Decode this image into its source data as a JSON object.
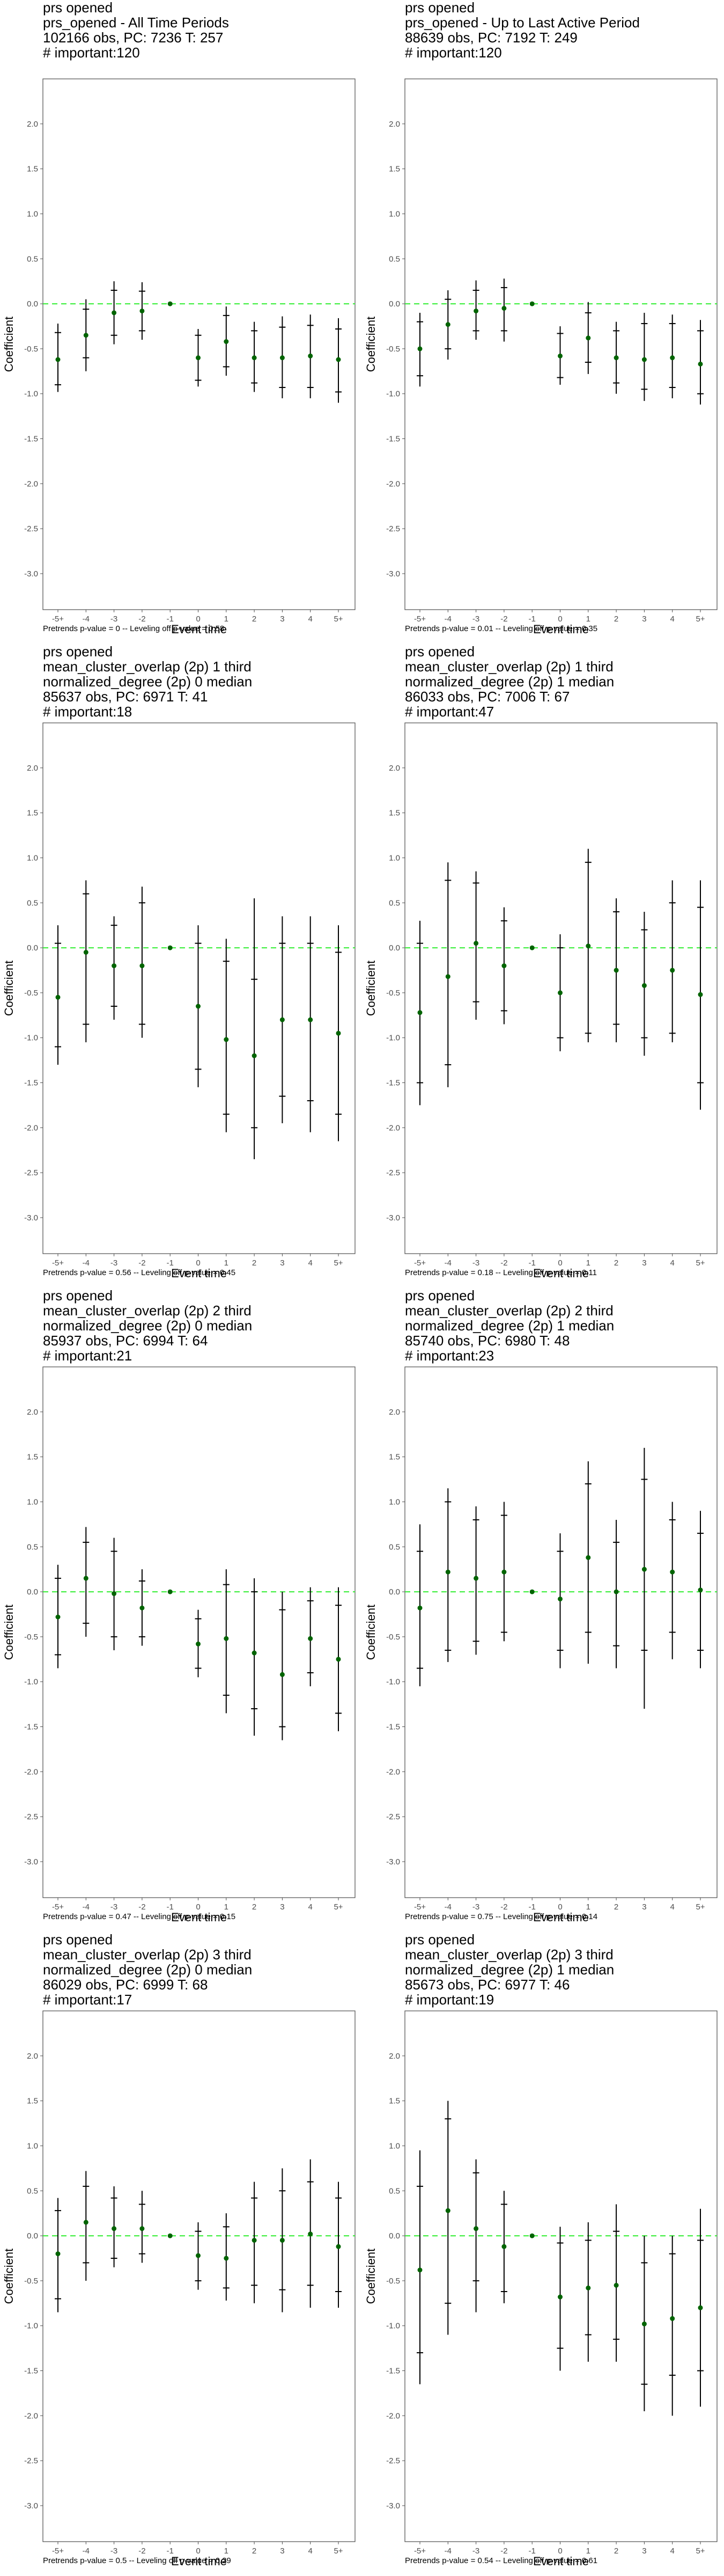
{
  "shared": {
    "xlabel": "Event time",
    "ylabel": "Coefficient",
    "categories": [
      "-5+",
      "-4",
      "-3",
      "-2",
      "-1",
      "0",
      "1",
      "2",
      "3",
      "4",
      "5+"
    ],
    "yticks": [
      2.0,
      1.5,
      1.0,
      0.5,
      0.0,
      -0.5,
      -1.0,
      -1.5,
      -2.0,
      -2.5,
      -3.0
    ],
    "ytick_labels": [
      "2.0",
      "1.5",
      "1.0",
      "0.5",
      "0.0",
      "-0.5",
      "-1.0",
      "-1.5",
      "-2.0",
      "-2.5",
      "-3.0"
    ],
    "ylim": [
      -3.4,
      2.5
    ],
    "colors": {
      "point": "#006400",
      "reference_line": "#33ee33",
      "error_bar": "#000000",
      "frame": "#4d4d4d"
    }
  },
  "chart_data": [
    {
      "type": "scatter",
      "title_lines": [
        "prs opened",
        "prs_opened - All Time Periods",
        "102166 obs, PC: 7236 T: 257",
        "# important:120"
      ],
      "footer": "Pretrends p-value = 0 -- Leveling off p-value = 0.58",
      "estimates": [
        -0.62,
        -0.35,
        -0.1,
        -0.08,
        0.0,
        -0.6,
        -0.42,
        -0.6,
        -0.6,
        -0.58,
        -0.62
      ],
      "ci_inner": [
        [
          -0.9,
          -0.32
        ],
        [
          -0.6,
          -0.06
        ],
        [
          -0.35,
          0.15
        ],
        [
          -0.3,
          0.14
        ],
        null,
        [
          -0.85,
          -0.35
        ],
        [
          -0.7,
          -0.13
        ],
        [
          -0.88,
          -0.3
        ],
        [
          -0.93,
          -0.26
        ],
        [
          -0.93,
          -0.24
        ],
        [
          -0.98,
          -0.28
        ]
      ],
      "ci_outer": [
        [
          -0.98,
          -0.22
        ],
        [
          -0.75,
          0.05
        ],
        [
          -0.45,
          0.25
        ],
        [
          -0.4,
          0.24
        ],
        null,
        [
          -0.92,
          -0.28
        ],
        [
          -0.8,
          -0.03
        ],
        [
          -0.98,
          -0.2
        ],
        [
          -1.05,
          -0.14
        ],
        [
          -1.05,
          -0.12
        ],
        [
          -1.1,
          -0.16
        ]
      ]
    },
    {
      "type": "scatter",
      "title_lines": [
        "prs opened",
        "prs_opened - Up to Last Active Period",
        "88639 obs, PC: 7192 T: 249",
        "# important:120"
      ],
      "footer": "Pretrends p-value = 0.01 -- Leveling off p-value = 0.35",
      "estimates": [
        -0.5,
        -0.23,
        -0.08,
        -0.05,
        0.0,
        -0.58,
        -0.38,
        -0.6,
        -0.62,
        -0.6,
        -0.67
      ],
      "ci_inner": [
        [
          -0.8,
          -0.2
        ],
        [
          -0.5,
          0.05
        ],
        [
          -0.3,
          0.15
        ],
        [
          -0.3,
          0.18
        ],
        null,
        [
          -0.82,
          -0.33
        ],
        [
          -0.65,
          -0.1
        ],
        [
          -0.88,
          -0.3
        ],
        [
          -0.95,
          -0.22
        ],
        [
          -0.93,
          -0.22
        ],
        [
          -1.0,
          -0.3
        ]
      ],
      "ci_outer": [
        [
          -0.92,
          -0.1
        ],
        [
          -0.62,
          0.15
        ],
        [
          -0.4,
          0.26
        ],
        [
          -0.42,
          0.28
        ],
        null,
        [
          -0.9,
          -0.25
        ],
        [
          -0.78,
          0.02
        ],
        [
          -1.0,
          -0.2
        ],
        [
          -1.08,
          -0.1
        ],
        [
          -1.05,
          -0.12
        ],
        [
          -1.12,
          -0.18
        ]
      ]
    },
    {
      "type": "scatter",
      "title_lines": [
        "prs opened",
        "mean_cluster_overlap (2p) 1 third",
        "normalized_degree (2p) 0 median",
        "85637 obs, PC: 6971 T: 41",
        "# important:18"
      ],
      "footer": "Pretrends p-value = 0.56 -- Leveling off p-value = 0.45",
      "estimates": [
        -0.55,
        -0.05,
        -0.2,
        -0.2,
        0.0,
        -0.65,
        -1.02,
        -1.2,
        -0.8,
        -0.8,
        -0.95
      ],
      "ci_inner": [
        [
          -1.1,
          0.05
        ],
        [
          -0.85,
          0.6
        ],
        [
          -0.65,
          0.25
        ],
        [
          -0.85,
          0.5
        ],
        null,
        [
          -1.35,
          0.05
        ],
        [
          -1.85,
          -0.15
        ],
        [
          -2.0,
          -0.35
        ],
        [
          -1.65,
          0.05
        ],
        [
          -1.7,
          0.05
        ],
        [
          -1.85,
          -0.05
        ]
      ],
      "ci_outer": [
        [
          -1.3,
          0.25
        ],
        [
          -1.05,
          0.75
        ],
        [
          -0.8,
          0.35
        ],
        [
          -1.0,
          0.68
        ],
        null,
        [
          -1.55,
          0.25
        ],
        [
          -2.05,
          0.1
        ],
        [
          -2.35,
          0.55
        ],
        [
          -1.95,
          0.35
        ],
        [
          -2.05,
          0.35
        ],
        [
          -2.15,
          0.25
        ]
      ]
    },
    {
      "type": "scatter",
      "title_lines": [
        "prs opened",
        "mean_cluster_overlap (2p) 1 third",
        "normalized_degree (2p) 1 median",
        "86033 obs, PC: 7006 T: 67",
        "# important:47"
      ],
      "footer": "Pretrends p-value = 0.18 -- Leveling off p-value = 0.11",
      "estimates": [
        -0.72,
        -0.32,
        0.05,
        -0.2,
        0.0,
        -0.5,
        0.02,
        -0.25,
        -0.42,
        -0.25,
        -0.52
      ],
      "ci_inner": [
        [
          -1.5,
          0.05
        ],
        [
          -1.3,
          0.75
        ],
        [
          -0.6,
          0.72
        ],
        [
          -0.7,
          0.3
        ],
        null,
        [
          -1.0,
          0.0
        ],
        [
          -0.95,
          0.95
        ],
        [
          -0.85,
          0.4
        ],
        [
          -1.0,
          0.2
        ],
        [
          -0.95,
          0.5
        ],
        [
          -1.5,
          0.45
        ]
      ],
      "ci_outer": [
        [
          -1.75,
          0.3
        ],
        [
          -1.55,
          0.95
        ],
        [
          -0.8,
          0.85
        ],
        [
          -0.85,
          0.45
        ],
        null,
        [
          -1.15,
          0.15
        ],
        [
          -1.05,
          1.1
        ],
        [
          -1.05,
          0.55
        ],
        [
          -1.2,
          0.4
        ],
        [
          -1.05,
          0.75
        ],
        [
          -1.8,
          0.75
        ]
      ]
    },
    {
      "type": "scatter",
      "title_lines": [
        "prs opened",
        "mean_cluster_overlap (2p) 2 third",
        "normalized_degree (2p) 0 median",
        "85937 obs, PC: 6994 T: 64",
        "# important:21"
      ],
      "footer": "Pretrends p-value = 0.47 -- Leveling off p-value = 0.15",
      "estimates": [
        -0.28,
        0.15,
        -0.02,
        -0.18,
        0.0,
        -0.58,
        -0.52,
        -0.68,
        -0.92,
        -0.52,
        -0.75
      ],
      "ci_inner": [
        [
          -0.7,
          0.15
        ],
        [
          -0.35,
          0.55
        ],
        [
          -0.5,
          0.45
        ],
        [
          -0.5,
          0.12
        ],
        null,
        [
          -0.85,
          -0.3
        ],
        [
          -1.15,
          0.08
        ],
        [
          -1.3,
          0.0
        ],
        [
          -1.5,
          -0.2
        ],
        [
          -0.9,
          -0.1
        ],
        [
          -1.35,
          -0.15
        ]
      ],
      "ci_outer": [
        [
          -0.85,
          0.3
        ],
        [
          -0.5,
          0.72
        ],
        [
          -0.65,
          0.6
        ],
        [
          -0.6,
          0.25
        ],
        null,
        [
          -0.95,
          -0.2
        ],
        [
          -1.35,
          0.25
        ],
        [
          -1.6,
          0.15
        ],
        [
          -1.65,
          0.0
        ],
        [
          -1.05,
          0.05
        ],
        [
          -1.55,
          0.05
        ]
      ]
    },
    {
      "type": "scatter",
      "title_lines": [
        "prs opened",
        "mean_cluster_overlap (2p) 2 third",
        "normalized_degree (2p) 1 median",
        "85740 obs, PC: 6980 T: 48",
        "# important:23"
      ],
      "footer": "Pretrends p-value = 0.75 -- Leveling off p-value = 0.14",
      "estimates": [
        -0.18,
        0.22,
        0.15,
        0.22,
        0.0,
        -0.08,
        0.38,
        0.0,
        0.25,
        0.22,
        0.02
      ],
      "ci_inner": [
        [
          -0.85,
          0.45
        ],
        [
          -0.65,
          1.0
        ],
        [
          -0.55,
          0.8
        ],
        [
          -0.45,
          0.85
        ],
        null,
        [
          -0.65,
          0.45
        ],
        [
          -0.45,
          1.2
        ],
        [
          -0.6,
          0.55
        ],
        [
          -0.65,
          1.25
        ],
        [
          -0.45,
          0.8
        ],
        [
          -0.65,
          0.65
        ]
      ],
      "ci_outer": [
        [
          -1.05,
          0.75
        ],
        [
          -0.78,
          1.15
        ],
        [
          -0.7,
          0.95
        ],
        [
          -0.55,
          1.0
        ],
        null,
        [
          -0.85,
          0.65
        ],
        [
          -0.8,
          1.45
        ],
        [
          -0.85,
          0.8
        ],
        [
          -1.3,
          1.6
        ],
        [
          -0.75,
          1.0
        ],
        [
          -0.85,
          0.9
        ]
      ]
    },
    {
      "type": "scatter",
      "title_lines": [
        "prs opened",
        "mean_cluster_overlap (2p) 3 third",
        "normalized_degree (2p) 0 median",
        "86029 obs, PC: 6999 T: 68",
        "# important:17"
      ],
      "footer": "Pretrends p-value = 0.5 -- Leveling off p-value = 0.29",
      "estimates": [
        -0.2,
        0.15,
        0.08,
        0.08,
        0.0,
        -0.22,
        -0.25,
        -0.05,
        -0.05,
        0.02,
        -0.12
      ],
      "ci_inner": [
        [
          -0.7,
          0.28
        ],
        [
          -0.3,
          0.55
        ],
        [
          -0.25,
          0.42
        ],
        [
          -0.2,
          0.35
        ],
        null,
        [
          -0.5,
          0.05
        ],
        [
          -0.58,
          0.1
        ],
        [
          -0.55,
          0.42
        ],
        [
          -0.6,
          0.5
        ],
        [
          -0.55,
          0.6
        ],
        [
          -0.62,
          0.42
        ]
      ],
      "ci_outer": [
        [
          -0.85,
          0.42
        ],
        [
          -0.5,
          0.72
        ],
        [
          -0.35,
          0.55
        ],
        [
          -0.3,
          0.5
        ],
        null,
        [
          -0.6,
          0.15
        ],
        [
          -0.72,
          0.25
        ],
        [
          -0.75,
          0.6
        ],
        [
          -0.85,
          0.75
        ],
        [
          -0.8,
          0.85
        ],
        [
          -0.8,
          0.6
        ]
      ]
    },
    {
      "type": "scatter",
      "title_lines": [
        "prs opened",
        "mean_cluster_overlap (2p) 3 third",
        "normalized_degree (2p) 1 median",
        "85673 obs, PC: 6977 T: 46",
        "# important:19"
      ],
      "footer": "Pretrends p-value = 0.54 -- Leveling off p-value = 0.61",
      "estimates": [
        -0.38,
        0.28,
        0.08,
        -0.12,
        0.0,
        -0.68,
        -0.58,
        -0.55,
        -0.98,
        -0.92,
        -0.8
      ],
      "ci_inner": [
        [
          -1.3,
          0.55
        ],
        [
          -0.75,
          1.3
        ],
        [
          -0.5,
          0.7
        ],
        [
          -0.62,
          0.35
        ],
        null,
        [
          -1.25,
          -0.08
        ],
        [
          -1.1,
          -0.05
        ],
        [
          -1.15,
          0.05
        ],
        [
          -1.65,
          -0.3
        ],
        [
          -1.55,
          -0.2
        ],
        [
          -1.5,
          -0.05
        ]
      ],
      "ci_outer": [
        [
          -1.65,
          0.95
        ],
        [
          -1.1,
          1.5
        ],
        [
          -0.85,
          0.85
        ],
        [
          -0.75,
          0.5
        ],
        null,
        [
          -1.5,
          0.1
        ],
        [
          -1.4,
          0.15
        ],
        [
          -1.4,
          0.35
        ],
        [
          -1.95,
          0.0
        ],
        [
          -2.0,
          0.0
        ],
        [
          -1.9,
          0.3
        ]
      ]
    }
  ]
}
